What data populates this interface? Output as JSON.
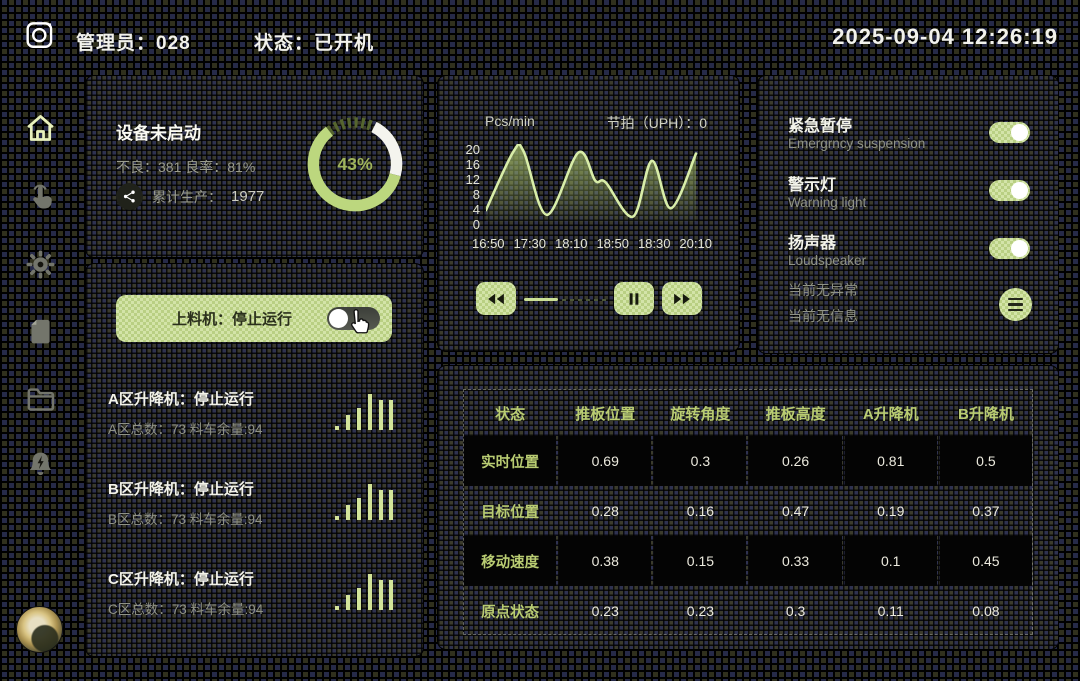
{
  "topbar": {
    "admin_label": "管理员：028",
    "status_label": "状态：已开机",
    "clock": "2025-09-04 12:26:19"
  },
  "sidebar": {
    "icons": [
      "home-icon",
      "touch-icon",
      "gear-icon",
      "document-icon",
      "folder-icon",
      "alarm-bell-icon"
    ],
    "active": "home-icon"
  },
  "device_card": {
    "title": "设备未启动",
    "stats": "不良：381  良率：81%",
    "total_label": "累计生产：",
    "total_value": "1977"
  },
  "feeder_card": {
    "banner": "上料机：停止运行",
    "banner_toggle_state": "off",
    "sections": [
      {
        "title": "A区升降机：停止运行",
        "subtitle": "A区总数：73  料车余量:94"
      },
      {
        "title": "B区升降机：停止运行",
        "subtitle": "B区总数：73  料车余量:94"
      },
      {
        "title": "C区升降机：停止运行",
        "subtitle": "C区总数：73  料车余量:94"
      }
    ]
  },
  "rate_card": {
    "unit": "Pcs/min",
    "uph": "节拍（UPH）：0",
    "controls": [
      "rewind-button",
      "progress-slider",
      "pause-button",
      "fast-forward-button"
    ]
  },
  "alarm_card": {
    "toggles": [
      {
        "title": "紧急暂停",
        "subtitle": "Emergrncy suspension",
        "state": "on"
      },
      {
        "title": "警示灯",
        "subtitle": "Warning light",
        "state": "on"
      },
      {
        "title": "扬声器",
        "subtitle": "Loudspeaker",
        "state": "on"
      }
    ],
    "notes": [
      "当前无异常",
      "当前无信息"
    ]
  },
  "table_card": {
    "headers": [
      "状态",
      "推板位置",
      "旋转角度",
      "推板高度",
      "A升降机",
      "B升降机"
    ],
    "rows": [
      {
        "label": "实时位置",
        "values": [
          "0.69",
          "0.3",
          "0.26",
          "0.81",
          "0.5"
        ],
        "dark": true
      },
      {
        "label": "目标位置",
        "values": [
          "0.28",
          "0.16",
          "0.47",
          "0.19",
          "0.37"
        ],
        "dark": false
      },
      {
        "label": "移动速度",
        "values": [
          "0.38",
          "0.15",
          "0.33",
          "0.1",
          "0.45"
        ],
        "dark": true
      },
      {
        "label": "原点状态",
        "values": [
          "0.23",
          "0.23",
          "0.3",
          "0.11",
          "0.08"
        ],
        "dark": false
      }
    ]
  },
  "colors": {
    "accent_green": "#c6dd90",
    "donut_green": "#bcd77e",
    "donut_white": "#f4f4ee",
    "table_label_green": "#b9cc72",
    "gray_text": "#8f9286"
  },
  "chart_data": [
    {
      "type": "area",
      "title": "Pcs/min",
      "annotation": "节拍（UPH）：0",
      "x_labels": [
        "16:50",
        "17:30",
        "18:10",
        "18:50",
        "18:30",
        "20:10"
      ],
      "y_ticks": [
        20,
        16,
        12,
        8,
        4,
        0
      ],
      "ylim": [
        0,
        20
      ],
      "points": [
        {
          "x": 0.0,
          "y": 3.3
        },
        {
          "x": 0.13,
          "y": 19.5
        },
        {
          "x": 0.18,
          "y": 19.5
        },
        {
          "x": 0.29,
          "y": 2.0
        },
        {
          "x": 0.44,
          "y": 19.3
        },
        {
          "x": 0.52,
          "y": 11.5
        },
        {
          "x": 0.57,
          "y": 11.0
        },
        {
          "x": 0.7,
          "y": 1.5
        },
        {
          "x": 0.79,
          "y": 17.0
        },
        {
          "x": 0.88,
          "y": 3.8
        },
        {
          "x": 1.0,
          "y": 19.0
        }
      ],
      "grid": false,
      "legend": false
    },
    {
      "type": "donut",
      "center_label": "43%",
      "value_pct": 43,
      "segments": [
        {
          "name": "green",
          "pct": 60
        },
        {
          "name": "white",
          "pct": 22
        },
        {
          "name": "dashed-ticks",
          "pct": 18
        }
      ]
    },
    {
      "type": "bar",
      "title": "elevator mini bar icon",
      "categories": [
        "1",
        "2",
        "3",
        "4",
        "5",
        "6"
      ],
      "values": [
        3,
        13,
        19,
        32,
        26,
        26
      ]
    }
  ]
}
